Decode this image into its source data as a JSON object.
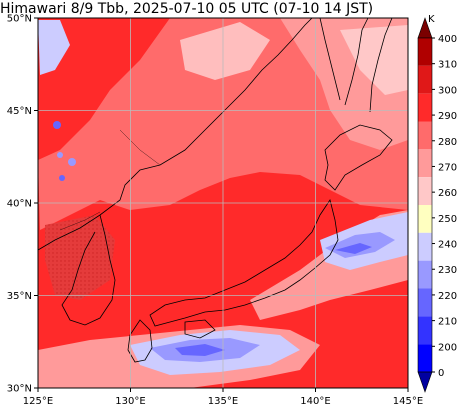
{
  "title": "Himawari 8/9 Tbb, 2025-07-10 05 UTC (07-10 14 JST)",
  "map": {
    "lon_range": [
      125,
      145
    ],
    "lat_range": [
      30,
      50
    ],
    "lon_ticks": [
      {
        "lon": 125,
        "label": "125°E"
      },
      {
        "lon": 130,
        "label": "130°E"
      },
      {
        "lon": 135,
        "label": "135°E"
      },
      {
        "lon": 140,
        "label": "140°E"
      },
      {
        "lon": 145,
        "label": "145°E"
      }
    ],
    "lat_ticks": [
      {
        "lat": 30,
        "label": "30°N"
      },
      {
        "lat": 35,
        "label": "35°N"
      },
      {
        "lat": 40,
        "label": "40°N"
      },
      {
        "lat": 45,
        "label": "45°N"
      },
      {
        "lat": 50,
        "label": "50°N"
      }
    ],
    "gridlines": true
  },
  "colorbar": {
    "unit": "K",
    "levels": [
      {
        "value": 400,
        "label": "400"
      },
      {
        "value": 310,
        "label": "310"
      },
      {
        "value": 300,
        "label": "300"
      },
      {
        "value": 290,
        "label": "290"
      },
      {
        "value": 280,
        "label": "280"
      },
      {
        "value": 270,
        "label": "270"
      },
      {
        "value": 260,
        "label": "260"
      },
      {
        "value": 250,
        "label": "250"
      },
      {
        "value": 240,
        "label": "240"
      },
      {
        "value": 230,
        "label": "230"
      },
      {
        "value": 220,
        "label": "220"
      },
      {
        "value": 210,
        "label": "210"
      },
      {
        "value": 200,
        "label": "200"
      },
      {
        "value": 0,
        "label": "0"
      }
    ],
    "colors_top_to_bottom": [
      "#7a0000",
      "#b00000",
      "#e01818",
      "#ff2a2a",
      "#ff6b6b",
      "#ff9a9a",
      "#ffc8c8",
      "#ffffc0",
      "#ccccff",
      "#9999ff",
      "#6666ff",
      "#3333ff",
      "#0000ff",
      "#0000a0"
    ]
  }
}
